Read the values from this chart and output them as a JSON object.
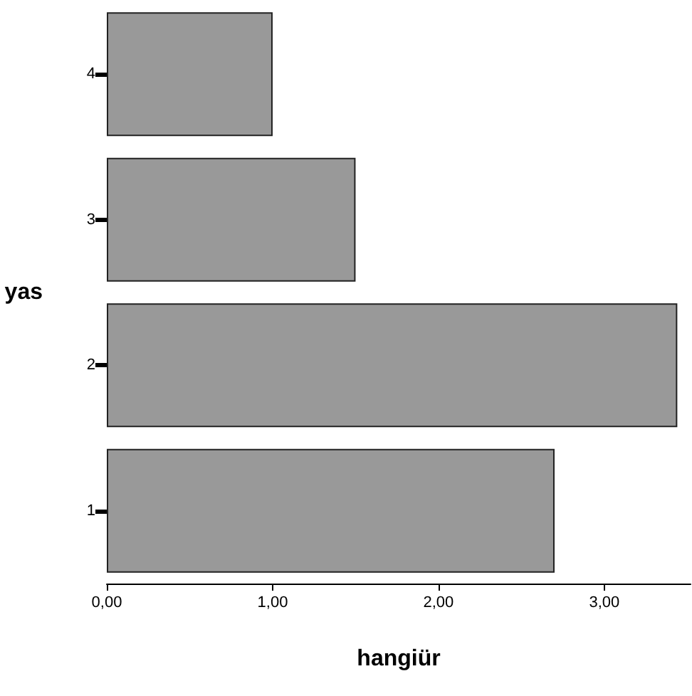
{
  "chart_data": {
    "type": "bar",
    "orientation": "horizontal",
    "xlabel": "hangiür",
    "ylabel": "yas",
    "categories": [
      "4",
      "3",
      "2",
      "1"
    ],
    "values": [
      1.0,
      1.5,
      3.44,
      2.7
    ],
    "color": "#999999",
    "xlim": [
      0,
      3.52
    ],
    "xticks": [
      {
        "value": 0,
        "label": "0,00"
      },
      {
        "value": 1,
        "label": "1,00"
      },
      {
        "value": 2,
        "label": "2,00"
      },
      {
        "value": 3,
        "label": "3,00"
      }
    ],
    "grid": false
  }
}
